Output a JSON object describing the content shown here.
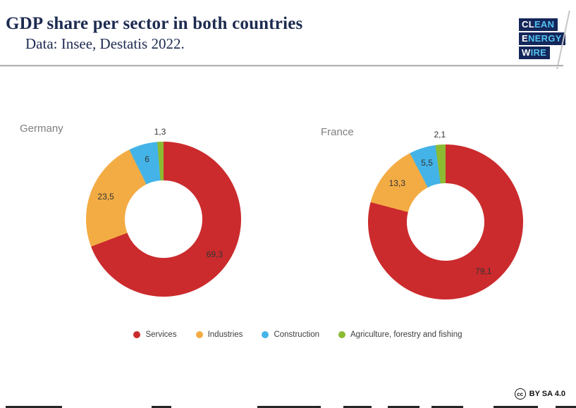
{
  "header": {
    "title": "GDP share per sector in both countries",
    "subtitle": "Data: Insee, Destatis 2022.",
    "text_color": "#1d2b50"
  },
  "logo": {
    "name": "Clean Energy Wire",
    "bg_color": "#14265a",
    "accent_color": "#54c3f1",
    "lines": [
      {
        "bold": "CL",
        "rest": "EAN"
      },
      {
        "bold": "E",
        "rest": "NERGY"
      },
      {
        "bold": "W",
        "rest": "IRE"
      }
    ]
  },
  "legend": [
    {
      "label": "Services",
      "color": "#cb2b2d"
    },
    {
      "label": "Industries",
      "color": "#f3ac44"
    },
    {
      "label": "Construction",
      "color": "#44b4e8"
    },
    {
      "label": "Agriculture, forestry and fishing",
      "color": "#8cbb33"
    }
  ],
  "chart_data": [
    {
      "type": "pie",
      "donut": true,
      "title": "Germany",
      "labels": [
        "Services",
        "Industries",
        "Construction",
        "Agriculture, forestry and fishing"
      ],
      "values": [
        69.3,
        23.5,
        6,
        1.3
      ],
      "display_values": [
        "69,3",
        "23,5",
        "6",
        "1,3"
      ],
      "colors": [
        "#cb2b2d",
        "#f3ac44",
        "#44b4e8",
        "#8cbb33"
      ],
      "start_angle_deg": 0,
      "direction": "clockwise",
      "hole_ratio": 0.5,
      "legend_position": "bottom"
    },
    {
      "type": "pie",
      "donut": true,
      "title": "France",
      "labels": [
        "Services",
        "Industries",
        "Construction",
        "Agriculture, forestry and fishing"
      ],
      "values": [
        79.1,
        13.3,
        5.5,
        2.1
      ],
      "display_values": [
        "79,1",
        "13,3",
        "5,5",
        "2,1"
      ],
      "colors": [
        "#cb2b2d",
        "#f3ac44",
        "#44b4e8",
        "#8cbb33"
      ],
      "start_angle_deg": 0,
      "direction": "clockwise",
      "hole_ratio": 0.5,
      "legend_position": "bottom"
    }
  ],
  "footer": {
    "cc_label": "cc",
    "license": "BY SA 4.0"
  }
}
